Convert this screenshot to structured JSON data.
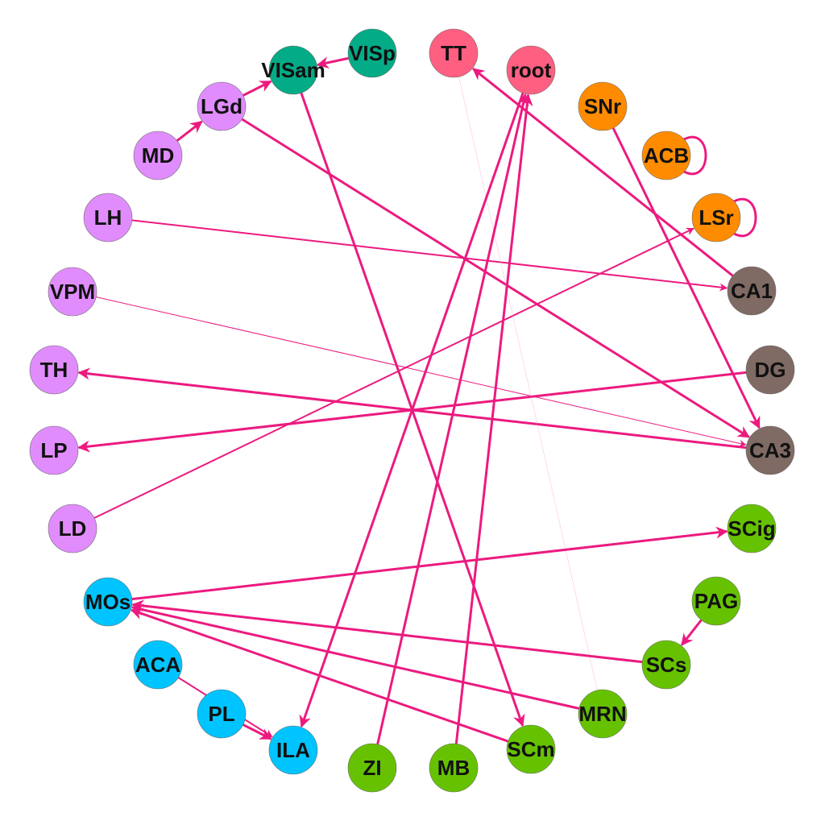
{
  "colors": {
    "edge": "#ec1a7f",
    "faint_edge": "#f4a6c8",
    "group_green_teal": "#03ac86",
    "group_red_pink": "#ff5f80",
    "group_orange": "#ff8c00",
    "group_brown": "#7f6a64",
    "group_green": "#66c200",
    "group_blue": "#00c4ff",
    "group_violet": "#e08cfc"
  },
  "nodes": [
    {
      "id": "VISp",
      "label": "VISp",
      "group": "group_green_teal"
    },
    {
      "id": "TT",
      "label": "TT",
      "group": "group_red_pink"
    },
    {
      "id": "root",
      "label": "root",
      "group": "group_red_pink"
    },
    {
      "id": "SNr",
      "label": "SNr",
      "group": "group_orange"
    },
    {
      "id": "ACB",
      "label": "ACB",
      "group": "group_orange"
    },
    {
      "id": "LSr",
      "label": "LSr",
      "group": "group_orange"
    },
    {
      "id": "CA1",
      "label": "CA1",
      "group": "group_brown"
    },
    {
      "id": "DG",
      "label": "DG",
      "group": "group_brown"
    },
    {
      "id": "CA3",
      "label": "CA3",
      "group": "group_brown"
    },
    {
      "id": "SCig",
      "label": "SCig",
      "group": "group_green"
    },
    {
      "id": "PAG",
      "label": "PAG",
      "group": "group_green"
    },
    {
      "id": "SCs",
      "label": "SCs",
      "group": "group_green"
    },
    {
      "id": "MRN",
      "label": "MRN",
      "group": "group_green"
    },
    {
      "id": "SCm",
      "label": "SCm",
      "group": "group_green"
    },
    {
      "id": "MB",
      "label": "MB",
      "group": "group_green"
    },
    {
      "id": "ZI",
      "label": "ZI",
      "group": "group_green"
    },
    {
      "id": "ILA",
      "label": "ILA",
      "group": "group_blue"
    },
    {
      "id": "PL",
      "label": "PL",
      "group": "group_blue"
    },
    {
      "id": "ACA",
      "label": "ACA",
      "group": "group_blue"
    },
    {
      "id": "MOs",
      "label": "MOs",
      "group": "group_blue"
    },
    {
      "id": "LD",
      "label": "LD",
      "group": "group_violet"
    },
    {
      "id": "LP",
      "label": "LP",
      "group": "group_violet"
    },
    {
      "id": "TH",
      "label": "TH",
      "group": "group_violet"
    },
    {
      "id": "VPM",
      "label": "VPM",
      "group": "group_violet"
    },
    {
      "id": "LH",
      "label": "LH",
      "group": "group_violet"
    },
    {
      "id": "MD",
      "label": "MD",
      "group": "group_violet"
    },
    {
      "id": "LGd",
      "label": "LGd",
      "group": "group_violet"
    },
    {
      "id": "VISam",
      "label": "VISam",
      "group": "group_green_teal"
    }
  ],
  "edges": [
    {
      "source": "VISp",
      "target": "VISam",
      "weight": 3
    },
    {
      "source": "MD",
      "target": "LGd",
      "weight": 3
    },
    {
      "source": "LGd",
      "target": "VISam",
      "weight": 3
    },
    {
      "source": "LGd",
      "target": "CA3",
      "weight": 3
    },
    {
      "source": "VISam",
      "target": "SCm",
      "weight": 3
    },
    {
      "source": "LH",
      "target": "CA1",
      "weight": 2
    },
    {
      "source": "VPM",
      "target": "CA3",
      "weight": 1
    },
    {
      "source": "CA3",
      "target": "TH",
      "weight": 3
    },
    {
      "source": "DG",
      "target": "LP",
      "weight": 3
    },
    {
      "source": "LD",
      "target": "LSr",
      "weight": 2
    },
    {
      "source": "CA1",
      "target": "TT",
      "weight": 3
    },
    {
      "source": "TT",
      "target": "MRN",
      "weight": 0.4,
      "faint": true
    },
    {
      "source": "root",
      "target": "ILA",
      "weight": 3
    },
    {
      "source": "ZI",
      "target": "root",
      "weight": 3
    },
    {
      "source": "MB",
      "target": "root",
      "weight": 3
    },
    {
      "source": "SNr",
      "target": "CA3",
      "weight": 3
    },
    {
      "source": "ACB",
      "target": "ACB",
      "weight": 3
    },
    {
      "source": "LSr",
      "target": "LSr",
      "weight": 3
    },
    {
      "source": "MOs",
      "target": "SCig",
      "weight": 3
    },
    {
      "source": "SCs",
      "target": "MOs",
      "weight": 3
    },
    {
      "source": "MRN",
      "target": "MOs",
      "weight": 3
    },
    {
      "source": "SCm",
      "target": "MOs",
      "weight": 3
    },
    {
      "source": "PAG",
      "target": "SCs",
      "weight": 3
    },
    {
      "source": "ACA",
      "target": "ILA",
      "weight": 2
    },
    {
      "source": "PL",
      "target": "ILA",
      "weight": 3
    }
  ]
}
